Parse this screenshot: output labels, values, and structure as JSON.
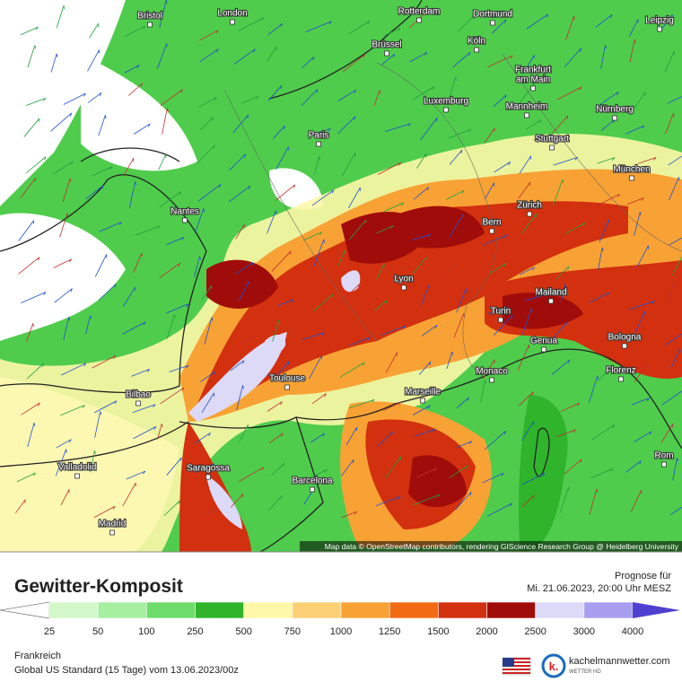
{
  "map": {
    "cities": [
      {
        "label": "Bristol"
      },
      {
        "label": "London"
      },
      {
        "label": "Rotterdam"
      },
      {
        "label": "Dortmund"
      },
      {
        "label": "Leipzig"
      },
      {
        "label": "Brüssel"
      },
      {
        "label": "Köln"
      },
      {
        "label": "Frankfurt"
      },
      {
        "label": "am Main"
      },
      {
        "label": "Luxemburg"
      },
      {
        "label": "Mannheim"
      },
      {
        "label": "Nürnberg"
      },
      {
        "label": "Paris"
      },
      {
        "label": "Stuttgart"
      },
      {
        "label": "München"
      },
      {
        "label": "Nantes"
      },
      {
        "label": "Zürich"
      },
      {
        "label": "Bern"
      },
      {
        "label": "Lyon"
      },
      {
        "label": "Mailand"
      },
      {
        "label": "Turin"
      },
      {
        "label": "Genua"
      },
      {
        "label": "Bologna"
      },
      {
        "label": "Monaco"
      },
      {
        "label": "Florenz"
      },
      {
        "label": "Toulouse"
      },
      {
        "label": "Bilbao"
      },
      {
        "label": "Marseille"
      },
      {
        "label": "Rom"
      },
      {
        "label": "Valladolid"
      },
      {
        "label": "Saragossa"
      },
      {
        "label": "Barcelona"
      },
      {
        "label": "Madrid"
      }
    ],
    "attribution": "Map data © OpenStreetMap contributors, rendering GIScience Research Group @ Heidelberg University"
  },
  "header": {
    "title": "Gewitter-Komposit",
    "forecast_label": "Prognose für",
    "forecast_time": "Mi. 21.06.2023, 20:00 Uhr MESZ"
  },
  "legend": {
    "levels": [
      "25",
      "50",
      "100",
      "250",
      "500",
      "750",
      "1000",
      "1250",
      "1500",
      "2000",
      "2500",
      "3000",
      "4000"
    ],
    "colors": [
      "#ffffff",
      "#d2f7c8",
      "#a6eea0",
      "#6edc6a",
      "#2fb42c",
      "#fdf7a8",
      "#fbd074",
      "#f8a235",
      "#f26a14",
      "#d2300e",
      "#a00c0a",
      "#dcdaf6",
      "#a89ef0",
      "#5040d0"
    ]
  },
  "footer": {
    "region": "Frankreich",
    "model": "Global US Standard (15 Tage) vom  13.06.2023/00z",
    "brand": "kachelmannwetter.com",
    "brand_sub": "WETTER HD"
  }
}
